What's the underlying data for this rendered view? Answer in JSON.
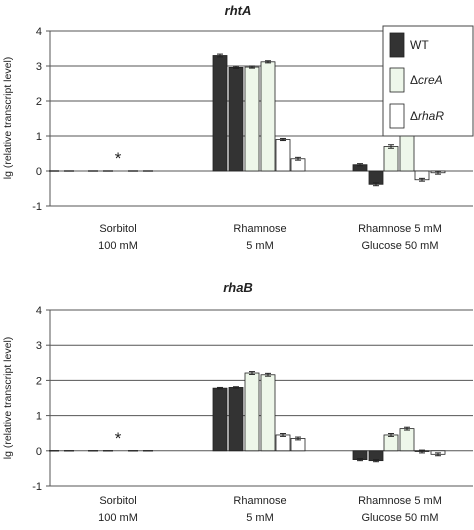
{
  "chart_data": [
    {
      "type": "bar",
      "title": "rhtA",
      "ylabel": "lg (relative transcript level)",
      "xlabel": "",
      "ylim": [
        -1,
        4
      ],
      "yticks": [
        "-1",
        "0",
        "1",
        "2",
        "3",
        "4"
      ],
      "grid": true,
      "categories": [
        {
          "line1": "Sorbitol",
          "line2": "100 mM"
        },
        {
          "line1": "Rhamnose",
          "line2": "5 mM"
        },
        {
          "line1": "Rhamnose 5 mM",
          "line2": "Glucose 50 mM"
        }
      ],
      "series": [
        {
          "name": "WT",
          "prefix": "",
          "italic": "",
          "fill": "#333333",
          "values": [
            [
              0.0,
              0.0
            ],
            [
              3.3,
              2.96
            ],
            [
              0.18,
              -0.38
            ]
          ],
          "errors": [
            [
              0,
              0
            ],
            [
              0.04,
              0.03
            ],
            [
              0.03,
              0.04
            ]
          ]
        },
        {
          "name": "ΔcreA",
          "prefix": "Δ",
          "italic": "creA",
          "fill": "#eef7ea",
          "values": [
            [
              0.0,
              0.0
            ],
            [
              2.97,
              3.12
            ],
            [
              0.7,
              1.48
            ]
          ],
          "errors": [
            [
              0,
              0
            ],
            [
              0.03,
              0.03
            ],
            [
              0.05,
              0.04
            ]
          ]
        },
        {
          "name": "ΔrhaR",
          "prefix": "Δ",
          "italic": "rhaR",
          "fill": "#ffffff",
          "values": [
            [
              0.0,
              0.0
            ],
            [
              0.9,
              0.35
            ],
            [
              -0.25,
              -0.05
            ]
          ],
          "errors": [
            [
              0,
              0
            ],
            [
              0.03,
              0.04
            ],
            [
              0.04,
              0.04
            ]
          ]
        }
      ],
      "annotation": "*",
      "legend": "top-right"
    },
    {
      "type": "bar",
      "title": "rhaB",
      "ylabel": "lg (relative transcript level)",
      "xlabel": "",
      "ylim": [
        -1,
        4
      ],
      "yticks": [
        "-1",
        "0",
        "1",
        "2",
        "3",
        "4"
      ],
      "grid": true,
      "categories": [
        {
          "line1": "Sorbitol",
          "line2": "100 mM"
        },
        {
          "line1": "Rhamnose",
          "line2": "5 mM"
        },
        {
          "line1": "Rhamnose 5 mM",
          "line2": "Glucose 50 mM"
        }
      ],
      "series": [
        {
          "name": "WT",
          "fill": "#333333",
          "values": [
            [
              0.0,
              0.0
            ],
            [
              1.78,
              1.8
            ],
            [
              -0.25,
              -0.28
            ]
          ],
          "errors": [
            [
              0,
              0
            ],
            [
              0.02,
              0.02
            ],
            [
              0.03,
              0.03
            ]
          ]
        },
        {
          "name": "ΔcreA",
          "fill": "#eef7ea",
          "values": [
            [
              0.0,
              0.0
            ],
            [
              2.21,
              2.16
            ],
            [
              0.45,
              0.63
            ]
          ],
          "errors": [
            [
              0,
              0
            ],
            [
              0.04,
              0.04
            ],
            [
              0.04,
              0.04
            ]
          ]
        },
        {
          "name": "ΔrhaR",
          "fill": "#ffffff",
          "values": [
            [
              0.0,
              0.0
            ],
            [
              0.45,
              0.35
            ],
            [
              -0.02,
              -0.1
            ]
          ],
          "errors": [
            [
              0,
              0
            ],
            [
              0.04,
              0.04
            ],
            [
              0.04,
              0.04
            ]
          ]
        }
      ],
      "annotation": "*",
      "legend": "none"
    }
  ]
}
